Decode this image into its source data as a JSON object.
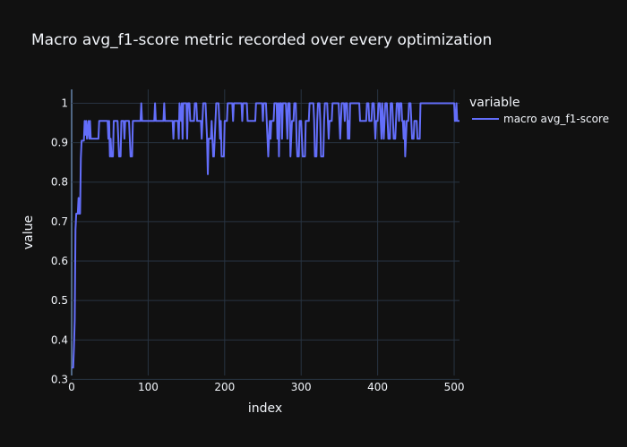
{
  "chart_data": {
    "type": "line",
    "title": "Macro avg_f1-score metric recorded over every optimization",
    "xlabel": "index",
    "ylabel": "value",
    "xlim": [
      0,
      507
    ],
    "ylim": [
      0.31,
      1.035
    ],
    "x_ticks": [
      0,
      100,
      200,
      300,
      400,
      500
    ],
    "y_ticks": [
      0.3,
      0.4,
      0.5,
      0.6,
      0.7,
      0.8,
      0.9,
      1
    ],
    "grid": true,
    "legend_title": "variable",
    "legend_position": "top-right",
    "series": [
      {
        "name": "macro avg_f1-score",
        "color": "#636efa",
        "points": [
          [
            0,
            0.33
          ],
          [
            2,
            0.33
          ],
          [
            3,
            0.38
          ],
          [
            4,
            0.45
          ],
          [
            5,
            0.68
          ],
          [
            6,
            0.72
          ],
          [
            8,
            0.72
          ],
          [
            9,
            0.76
          ],
          [
            10,
            0.72
          ],
          [
            11,
            0.72
          ],
          [
            12,
            0.86
          ],
          [
            13,
            0.905
          ],
          [
            16,
            0.905
          ],
          [
            17,
            0.955
          ],
          [
            18,
            0.92
          ],
          [
            19,
            0.955
          ],
          [
            20,
            0.91
          ],
          [
            22,
            0.955
          ],
          [
            23,
            0.91
          ],
          [
            24,
            0.955
          ],
          [
            25,
            0.91
          ],
          [
            35,
            0.91
          ],
          [
            36,
            0.955
          ],
          [
            47,
            0.955
          ],
          [
            48,
            0.91
          ],
          [
            49,
            0.955
          ],
          [
            50,
            0.865
          ],
          [
            51,
            0.91
          ],
          [
            52,
            0.865
          ],
          [
            54,
            0.865
          ],
          [
            55,
            0.955
          ],
          [
            60,
            0.955
          ],
          [
            61,
            0.91
          ],
          [
            62,
            0.865
          ],
          [
            64,
            0.865
          ],
          [
            65,
            0.955
          ],
          [
            68,
            0.955
          ],
          [
            69,
            0.91
          ],
          [
            70,
            0.955
          ],
          [
            75,
            0.955
          ],
          [
            76,
            0.91
          ],
          [
            77,
            0.865
          ],
          [
            79,
            0.865
          ],
          [
            80,
            0.955
          ],
          [
            90,
            0.955
          ],
          [
            91,
            1.0
          ],
          [
            92,
            0.955
          ],
          [
            108,
            0.955
          ],
          [
            109,
            1.0
          ],
          [
            110,
            0.955
          ],
          [
            120,
            0.955
          ],
          [
            121,
            1.0
          ],
          [
            122,
            0.955
          ],
          [
            132,
            0.955
          ],
          [
            133,
            0.91
          ],
          [
            134,
            0.955
          ],
          [
            139,
            0.955
          ],
          [
            140,
            0.91
          ],
          [
            141,
            1.0
          ],
          [
            143,
            0.955
          ],
          [
            144,
            1.0
          ],
          [
            145,
            0.91
          ],
          [
            146,
            1.0
          ],
          [
            150,
            1.0
          ],
          [
            151,
            0.91
          ],
          [
            152,
            1.0
          ],
          [
            154,
            1.0
          ],
          [
            155,
            0.955
          ],
          [
            160,
            0.955
          ],
          [
            161,
            1.0
          ],
          [
            163,
            1.0
          ],
          [
            164,
            0.955
          ],
          [
            169,
            0.955
          ],
          [
            170,
            0.91
          ],
          [
            171,
            0.955
          ],
          [
            172,
            1.0
          ],
          [
            175,
            1.0
          ],
          [
            176,
            0.955
          ],
          [
            177,
            0.91
          ],
          [
            178,
            0.82
          ],
          [
            179,
            0.91
          ],
          [
            182,
            0.91
          ],
          [
            183,
            0.955
          ],
          [
            184,
            0.91
          ],
          [
            185,
            0.865
          ],
          [
            186,
            0.865
          ],
          [
            187,
            0.91
          ],
          [
            188,
            0.955
          ],
          [
            189,
            1.0
          ],
          [
            192,
            1.0
          ],
          [
            193,
            0.955
          ],
          [
            194,
            0.91
          ],
          [
            195,
            0.955
          ],
          [
            196,
            0.865
          ],
          [
            199,
            0.865
          ],
          [
            200,
            0.955
          ],
          [
            203,
            0.955
          ],
          [
            204,
            1.0
          ],
          [
            210,
            1.0
          ],
          [
            211,
            0.955
          ],
          [
            212,
            1.0
          ],
          [
            222,
            1.0
          ],
          [
            223,
            0.955
          ],
          [
            224,
            1.0
          ],
          [
            229,
            1.0
          ],
          [
            230,
            0.955
          ],
          [
            240,
            0.955
          ],
          [
            241,
            1.0
          ],
          [
            249,
            1.0
          ],
          [
            250,
            0.955
          ],
          [
            251,
            1.0
          ],
          [
            254,
            1.0
          ],
          [
            255,
            0.955
          ],
          [
            256,
            0.91
          ],
          [
            257,
            0.865
          ],
          [
            258,
            0.91
          ],
          [
            259,
            0.955
          ],
          [
            260,
            0.91
          ],
          [
            261,
            0.955
          ],
          [
            264,
            0.955
          ],
          [
            265,
            1.0
          ],
          [
            268,
            1.0
          ],
          [
            269,
            0.91
          ],
          [
            270,
            1.0
          ],
          [
            271,
            0.865
          ],
          [
            272,
            1.0
          ],
          [
            274,
            1.0
          ],
          [
            275,
            0.91
          ],
          [
            276,
            1.0
          ],
          [
            280,
            1.0
          ],
          [
            281,
            0.955
          ],
          [
            282,
            0.91
          ],
          [
            283,
            1.0
          ],
          [
            285,
            1.0
          ],
          [
            286,
            0.865
          ],
          [
            287,
            0.91
          ],
          [
            288,
            0.955
          ],
          [
            290,
            0.955
          ],
          [
            291,
            1.0
          ],
          [
            293,
            1.0
          ],
          [
            294,
            0.91
          ],
          [
            295,
            0.865
          ],
          [
            297,
            0.865
          ],
          [
            298,
            0.955
          ],
          [
            300,
            0.955
          ],
          [
            301,
            0.91
          ],
          [
            302,
            0.865
          ],
          [
            305,
            0.865
          ],
          [
            306,
            0.955
          ],
          [
            310,
            0.955
          ],
          [
            311,
            1.0
          ],
          [
            316,
            1.0
          ],
          [
            317,
            0.955
          ],
          [
            318,
            0.865
          ],
          [
            320,
            0.865
          ],
          [
            321,
            0.955
          ],
          [
            322,
            1.0
          ],
          [
            324,
            1.0
          ],
          [
            325,
            0.955
          ],
          [
            326,
            0.865
          ],
          [
            329,
            0.865
          ],
          [
            330,
            0.955
          ],
          [
            331,
            1.0
          ],
          [
            334,
            1.0
          ],
          [
            335,
            0.955
          ],
          [
            336,
            0.91
          ],
          [
            337,
            0.955
          ],
          [
            340,
            0.955
          ],
          [
            341,
            1.0
          ],
          [
            349,
            1.0
          ],
          [
            350,
            0.955
          ],
          [
            351,
            0.91
          ],
          [
            352,
            0.955
          ],
          [
            353,
            1.0
          ],
          [
            356,
            1.0
          ],
          [
            357,
            0.955
          ],
          [
            358,
            1.0
          ],
          [
            360,
            1.0
          ],
          [
            361,
            0.91
          ],
          [
            362,
            0.955
          ],
          [
            363,
            0.91
          ],
          [
            364,
            1.0
          ],
          [
            376,
            1.0
          ],
          [
            377,
            0.955
          ],
          [
            385,
            0.955
          ],
          [
            386,
            1.0
          ],
          [
            388,
            1.0
          ],
          [
            389,
            0.955
          ],
          [
            392,
            0.955
          ],
          [
            393,
            1.0
          ],
          [
            395,
            1.0
          ],
          [
            396,
            0.955
          ],
          [
            397,
            0.91
          ],
          [
            398,
            0.955
          ],
          [
            400,
            0.955
          ],
          [
            401,
            1.0
          ],
          [
            403,
            1.0
          ],
          [
            404,
            0.955
          ],
          [
            405,
            0.91
          ],
          [
            406,
            1.0
          ],
          [
            407,
            0.955
          ],
          [
            408,
            0.91
          ],
          [
            409,
            0.955
          ],
          [
            410,
            1.0
          ],
          [
            412,
            1.0
          ],
          [
            413,
            0.955
          ],
          [
            414,
            0.91
          ],
          [
            416,
            0.91
          ],
          [
            417,
            1.0
          ],
          [
            419,
            1.0
          ],
          [
            420,
            0.955
          ],
          [
            421,
            0.91
          ],
          [
            423,
            0.91
          ],
          [
            424,
            0.955
          ],
          [
            425,
            1.0
          ],
          [
            427,
            1.0
          ],
          [
            428,
            0.955
          ],
          [
            429,
            1.0
          ],
          [
            431,
            1.0
          ],
          [
            432,
            0.955
          ],
          [
            433,
            0.955
          ],
          [
            434,
            0.91
          ],
          [
            435,
            0.955
          ],
          [
            436,
            0.865
          ],
          [
            437,
            0.91
          ],
          [
            438,
            0.955
          ],
          [
            440,
            0.955
          ],
          [
            441,
            1.0
          ],
          [
            443,
            1.0
          ],
          [
            444,
            0.955
          ],
          [
            445,
            0.91
          ],
          [
            447,
            0.91
          ],
          [
            448,
            0.955
          ],
          [
            451,
            0.955
          ],
          [
            452,
            0.91
          ],
          [
            455,
            0.91
          ],
          [
            456,
            1.0
          ],
          [
            500,
            1.0
          ],
          [
            501,
            0.955
          ],
          [
            502,
            0.955
          ],
          [
            503,
            1.0
          ],
          [
            504,
            0.955
          ],
          [
            507,
            0.955
          ]
        ]
      }
    ]
  }
}
